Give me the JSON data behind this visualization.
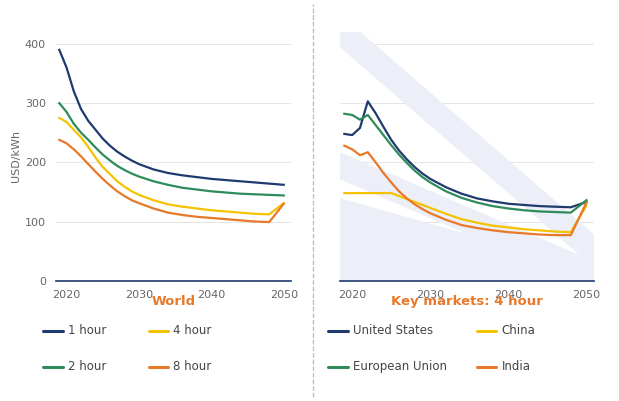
{
  "title_left": "World",
  "title_right": "Key markets: 4 hour",
  "ylabel": "USD/kWh",
  "years": [
    2019,
    2020,
    2021,
    2022,
    2023,
    2024,
    2025,
    2026,
    2027,
    2028,
    2029,
    2030,
    2032,
    2034,
    2036,
    2038,
    2040,
    2042,
    2044,
    2046,
    2048,
    2050
  ],
  "world": {
    "1hour": [
      390,
      360,
      320,
      290,
      270,
      255,
      240,
      228,
      218,
      210,
      203,
      197,
      188,
      182,
      178,
      175,
      172,
      170,
      168,
      166,
      164,
      162
    ],
    "2hour": [
      300,
      285,
      265,
      250,
      238,
      225,
      213,
      203,
      194,
      187,
      181,
      176,
      168,
      162,
      157,
      154,
      151,
      149,
      147,
      146,
      145,
      144
    ],
    "4hour": [
      275,
      268,
      255,
      242,
      226,
      208,
      192,
      180,
      168,
      159,
      151,
      145,
      136,
      129,
      125,
      122,
      119,
      117,
      115,
      113,
      112,
      131
    ],
    "8hour": [
      238,
      232,
      222,
      210,
      197,
      184,
      172,
      161,
      151,
      143,
      136,
      131,
      122,
      115,
      111,
      108,
      106,
      104,
      102,
      100,
      99,
      130
    ]
  },
  "keymarkets": {
    "us": [
      248,
      246,
      258,
      303,
      283,
      260,
      238,
      220,
      205,
      192,
      181,
      172,
      158,
      147,
      139,
      134,
      130,
      128,
      126,
      125,
      124,
      133
    ],
    "eu": [
      282,
      280,
      272,
      280,
      263,
      246,
      229,
      213,
      199,
      186,
      175,
      166,
      151,
      140,
      132,
      126,
      122,
      119,
      117,
      116,
      115,
      136
    ],
    "china": [
      148,
      148,
      148,
      148,
      148,
      148,
      148,
      143,
      138,
      133,
      128,
      123,
      113,
      104,
      98,
      93,
      90,
      87,
      85,
      83,
      82,
      127
    ],
    "india": [
      228,
      222,
      212,
      217,
      200,
      182,
      166,
      151,
      139,
      129,
      121,
      114,
      103,
      94,
      89,
      85,
      82,
      80,
      78,
      77,
      77,
      132
    ]
  },
  "colors": {
    "dark_blue": "#1f3a6e",
    "green": "#2e8b5a",
    "yellow": "#f5c200",
    "orange": "#e8792a"
  },
  "watermark_color": "#e8eaf6",
  "bg_color": "#ffffff",
  "label_color": "#666666",
  "title_color": "#e8792a",
  "ylim": [
    0,
    420
  ],
  "yticks": [
    0,
    100,
    200,
    300,
    400
  ],
  "xticks": [
    2020,
    2030,
    2040,
    2050
  ],
  "bottom_spine_color": "#1f3a6e"
}
